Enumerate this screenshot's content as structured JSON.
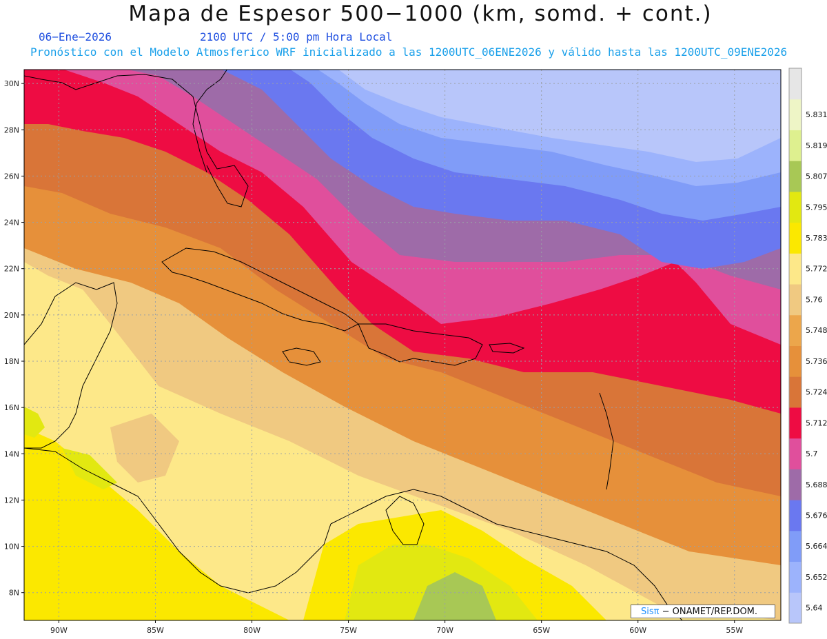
{
  "header": {
    "title": "Mapa de Espesor 500−1000 (km, somd. + cont.)",
    "date": "06−Ene−2026",
    "time": "2100 UTC / 5:00 pm Hora Local",
    "subtitle": "Pronóstico con el Modelo Atmosferico WRF inicializado a las 1200UTC_06ENE2026 y válido hasta las  1200UTC_09ENE2026"
  },
  "map": {
    "lat_labels": [
      "30N",
      "28N",
      "26N",
      "24N",
      "22N",
      "20N",
      "18N",
      "16N",
      "14N",
      "12N",
      "10N",
      "8N"
    ],
    "lon_labels": [
      "90W",
      "85W",
      "80W",
      "75W",
      "70W",
      "65W",
      "60W",
      "55W"
    ],
    "extent": {
      "lon_min": -91.8,
      "lon_max": -52.6,
      "lat_min": 6.8,
      "lat_max": 30.6
    }
  },
  "colorbar": {
    "levels": [
      "5.64",
      "5.652",
      "5.664",
      "5.676",
      "5.688",
      "5.7",
      "5.712",
      "5.724",
      "5.736",
      "5.748",
      "5.76",
      "5.772",
      "5.783",
      "5.795",
      "5.807",
      "5.819",
      "5.831"
    ],
    "colors": [
      "#b8c6fa",
      "#9cb3fc",
      "#809cf8",
      "#6a78f0",
      "#9e6ba8",
      "#e04f9c",
      "#ee0c43",
      "#d97538",
      "#e6903a",
      "#eca64b",
      "#f0c981",
      "#fde889",
      "#fbe800",
      "#e2e811",
      "#a8c855",
      "#def08f",
      "#eef5c6",
      "#e6e6e6"
    ]
  },
  "credit": {
    "logo": "Sisπ",
    "text": "− ONAMET/REP.DOM."
  }
}
